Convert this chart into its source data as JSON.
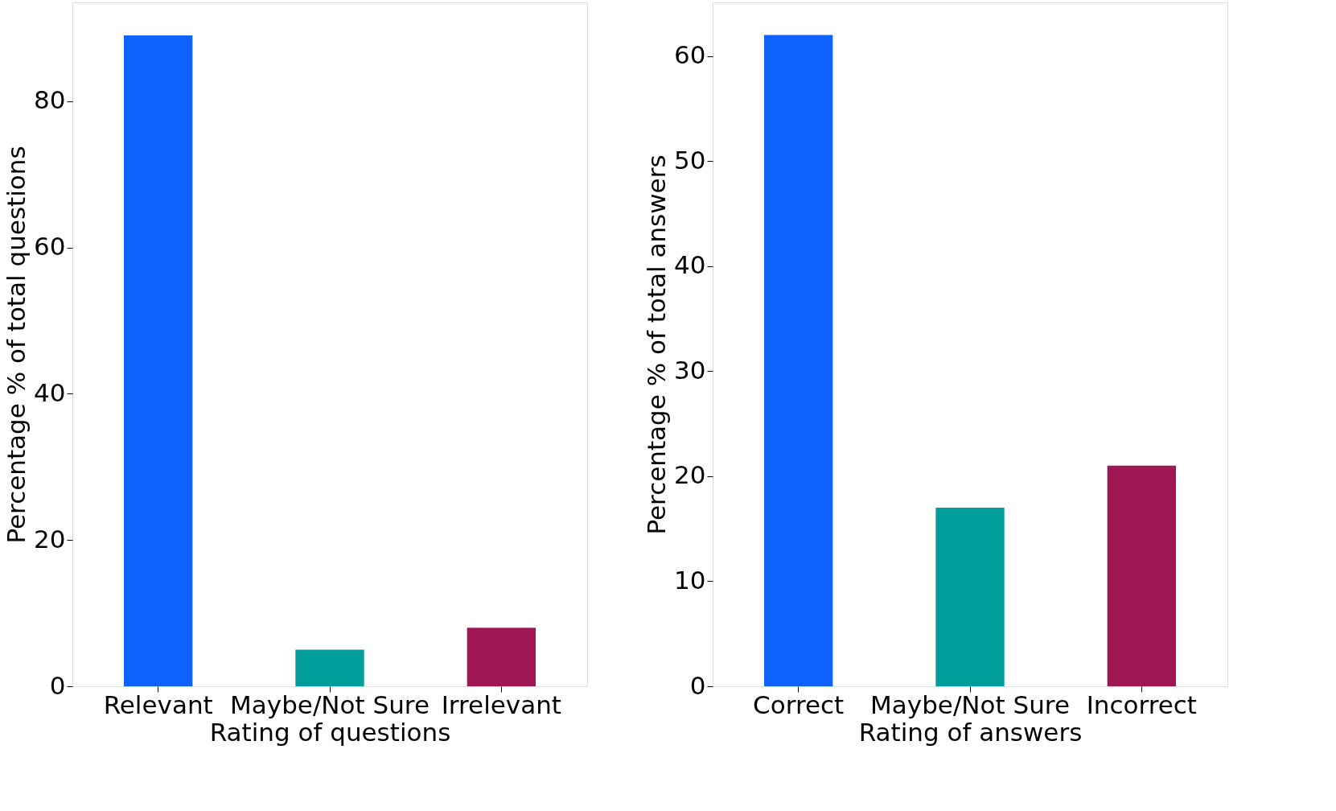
{
  "chart_data": [
    {
      "type": "bar",
      "xlabel": "Rating of questions",
      "ylabel": "Percentage % of total questions",
      "categories": [
        "Relevant",
        "Maybe/Not Sure",
        "Irrelevant"
      ],
      "values": [
        89,
        5,
        8
      ],
      "colors": [
        "#0f62fe",
        "#009d9a",
        "#9f1853"
      ],
      "ylim": [
        0,
        93.5
      ],
      "yticks": [
        0,
        20,
        40,
        60,
        80
      ],
      "grid": false
    },
    {
      "type": "bar",
      "xlabel": "Rating of answers",
      "ylabel": "Percentage % of total answers",
      "categories": [
        "Correct",
        "Maybe/Not Sure",
        "Incorrect"
      ],
      "values": [
        62,
        17,
        21
      ],
      "colors": [
        "#0f62fe",
        "#009d9a",
        "#9f1853"
      ],
      "ylim": [
        0,
        65.1
      ],
      "yticks": [
        0,
        10,
        20,
        30,
        40,
        50,
        60
      ],
      "grid": false
    }
  ]
}
